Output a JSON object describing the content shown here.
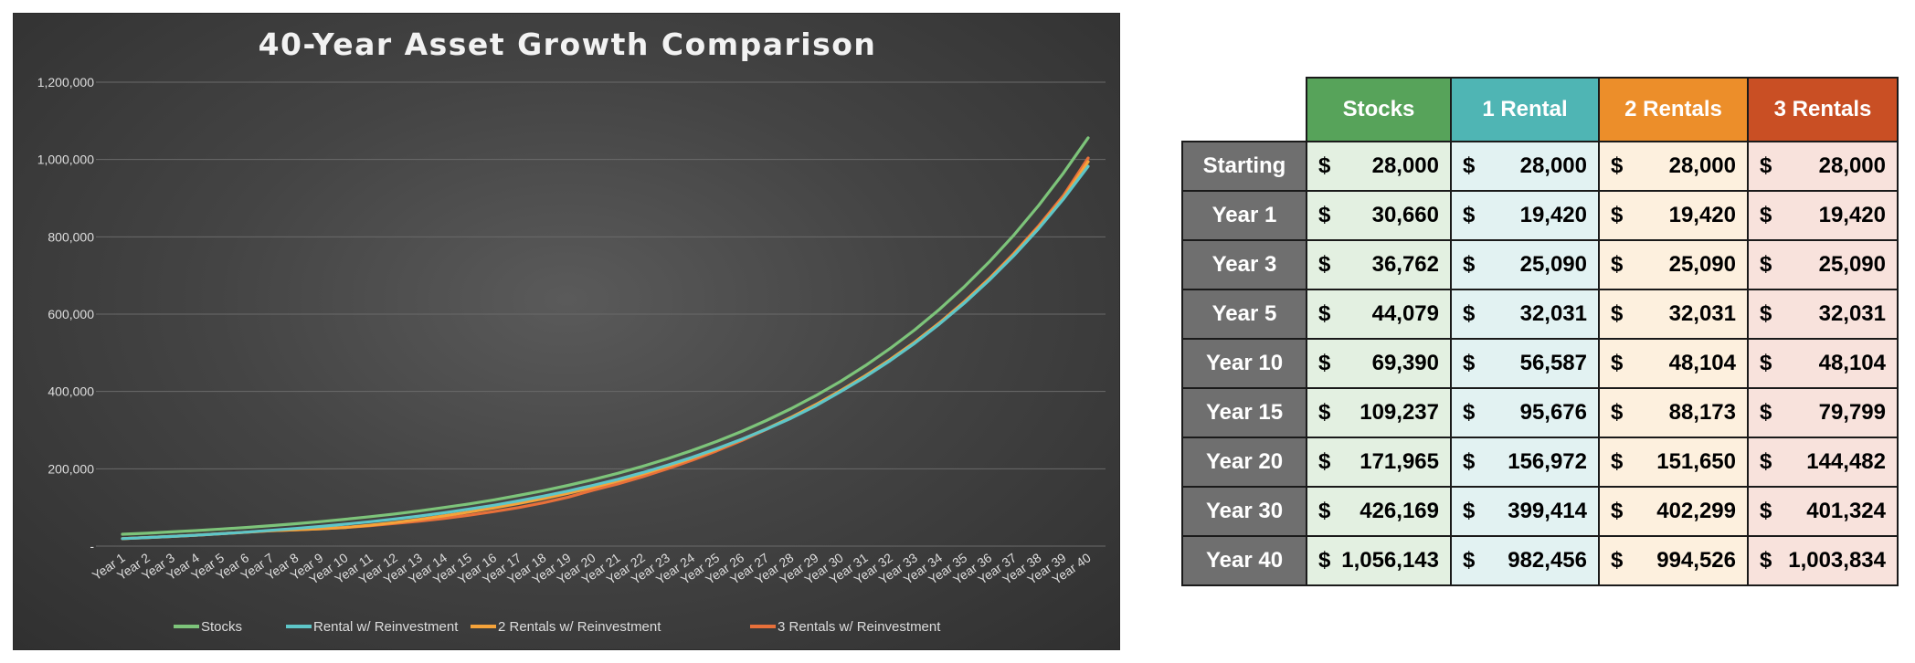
{
  "chart_data": {
    "type": "line",
    "title": "40-Year Asset Growth Comparison",
    "xlabel": "",
    "ylabel": "",
    "ylim": [
      0,
      1200000
    ],
    "y_ticks": [
      0,
      200000,
      400000,
      600000,
      800000,
      1000000,
      1200000
    ],
    "y_tick_labels": [
      "-",
      "200,000",
      "400,000",
      "600,000",
      "800,000",
      "1,000,000",
      "1,200,000"
    ],
    "grid": true,
    "legend": "bottom",
    "categories": [
      "Year 1",
      "Year 2",
      "Year 3",
      "Year 4",
      "Year 5",
      "Year 6",
      "Year 7",
      "Year 8",
      "Year 9",
      "Year 10",
      "Year 11",
      "Year 12",
      "Year 13",
      "Year 14",
      "Year 15",
      "Year 16",
      "Year 17",
      "Year 18",
      "Year 19",
      "Year 20",
      "Year 21",
      "Year 22",
      "Year 23",
      "Year 24",
      "Year 25",
      "Year 26",
      "Year 27",
      "Year 28",
      "Year 29",
      "Year 30",
      "Year 31",
      "Year 32",
      "Year 33",
      "Year 34",
      "Year 35",
      "Year 36",
      "Year 37",
      "Year 38",
      "Year 39",
      "Year 40"
    ],
    "series": [
      {
        "name": "Stocks",
        "color": "#7dc47a",
        "values": [
          30660,
          33400,
          36762,
          40260,
          44079,
          48300,
          52900,
          57900,
          63400,
          69390,
          76000,
          83200,
          91100,
          99900,
          109237,
          119600,
          131000,
          143500,
          157100,
          171965,
          188300,
          206200,
          225800,
          247300,
          270800,
          296500,
          324700,
          355500,
          389300,
          426169,
          466700,
          511100,
          559600,
          612800,
          671000,
          734800,
          804600,
          881100,
          964800,
          1056143
        ]
      },
      {
        "name": "Rental w/ Reinvestment",
        "color": "#5ec6c8",
        "values": [
          19420,
          22100,
          25090,
          28400,
          32031,
          36200,
          40900,
          45600,
          50900,
          56587,
          63000,
          70000,
          77800,
          86300,
          95676,
          105700,
          116900,
          129200,
          142500,
          156972,
          172600,
          190000,
          209000,
          229700,
          252000,
          276200,
          302300,
          330800,
          362800,
          399414,
          437800,
          479600,
          525000,
          574700,
          628700,
          687400,
          751400,
          821000,
          897600,
          982456
        ]
      },
      {
        "name": "2 Rentals w/ Reinvestment",
        "color": "#f5a33a",
        "values": [
          19420,
          22100,
          25090,
          28400,
          32031,
          36000,
          40000,
          42000,
          45000,
          48104,
          54000,
          61000,
          69300,
          78500,
          88173,
          98700,
          110300,
          122800,
          136500,
          151650,
          168100,
          186100,
          205800,
          227200,
          250400,
          275600,
          303100,
          333000,
          365900,
          402299,
          440700,
          482500,
          527900,
          577300,
          631400,
          690400,
          754600,
          824500,
          900500,
          994526
        ]
      },
      {
        "name": "3 Rentals w/ Reinvestment",
        "color": "#e8703a",
        "values": [
          19420,
          22100,
          25090,
          28400,
          32031,
          36000,
          40000,
          42000,
          45000,
          48104,
          53000,
          58600,
          64800,
          71800,
          79799,
          89200,
          99800,
          111900,
          126500,
          144482,
          160700,
          179400,
          199900,
          222100,
          246400,
          272800,
          301700,
          333000,
          366300,
          401324,
          440000,
          482200,
          528000,
          578000,
          632600,
          692000,
          757200,
          828500,
          906600,
          1003834
        ]
      }
    ]
  },
  "table": {
    "headers": [
      "Stocks",
      "1 Rental",
      "2 Rentals",
      "3 Rentals"
    ],
    "header_colors": [
      "#57a35a",
      "#4fb5b4",
      "#ec8e2a",
      "#c94f24"
    ],
    "cell_colors": [
      "#e3f0e1",
      "#e2f2f2",
      "#fdf0de",
      "#f8e2dc"
    ],
    "currency": "$",
    "rows": [
      {
        "label": "Starting",
        "values": [
          "28,000",
          "28,000",
          "28,000",
          "28,000"
        ]
      },
      {
        "label": "Year 1",
        "values": [
          "30,660",
          "19,420",
          "19,420",
          "19,420"
        ]
      },
      {
        "label": "Year 3",
        "values": [
          "36,762",
          "25,090",
          "25,090",
          "25,090"
        ]
      },
      {
        "label": "Year 5",
        "values": [
          "44,079",
          "32,031",
          "32,031",
          "32,031"
        ]
      },
      {
        "label": "Year 10",
        "values": [
          "69,390",
          "56,587",
          "48,104",
          "48,104"
        ]
      },
      {
        "label": "Year 15",
        "values": [
          "109,237",
          "95,676",
          "88,173",
          "79,799"
        ]
      },
      {
        "label": "Year 20",
        "values": [
          "171,965",
          "156,972",
          "151,650",
          "144,482"
        ]
      },
      {
        "label": "Year 30",
        "values": [
          "426,169",
          "399,414",
          "402,299",
          "401,324"
        ]
      },
      {
        "label": "Year 40",
        "values": [
          "1,056,143",
          "982,456",
          "994,526",
          "1,003,834"
        ]
      }
    ]
  }
}
